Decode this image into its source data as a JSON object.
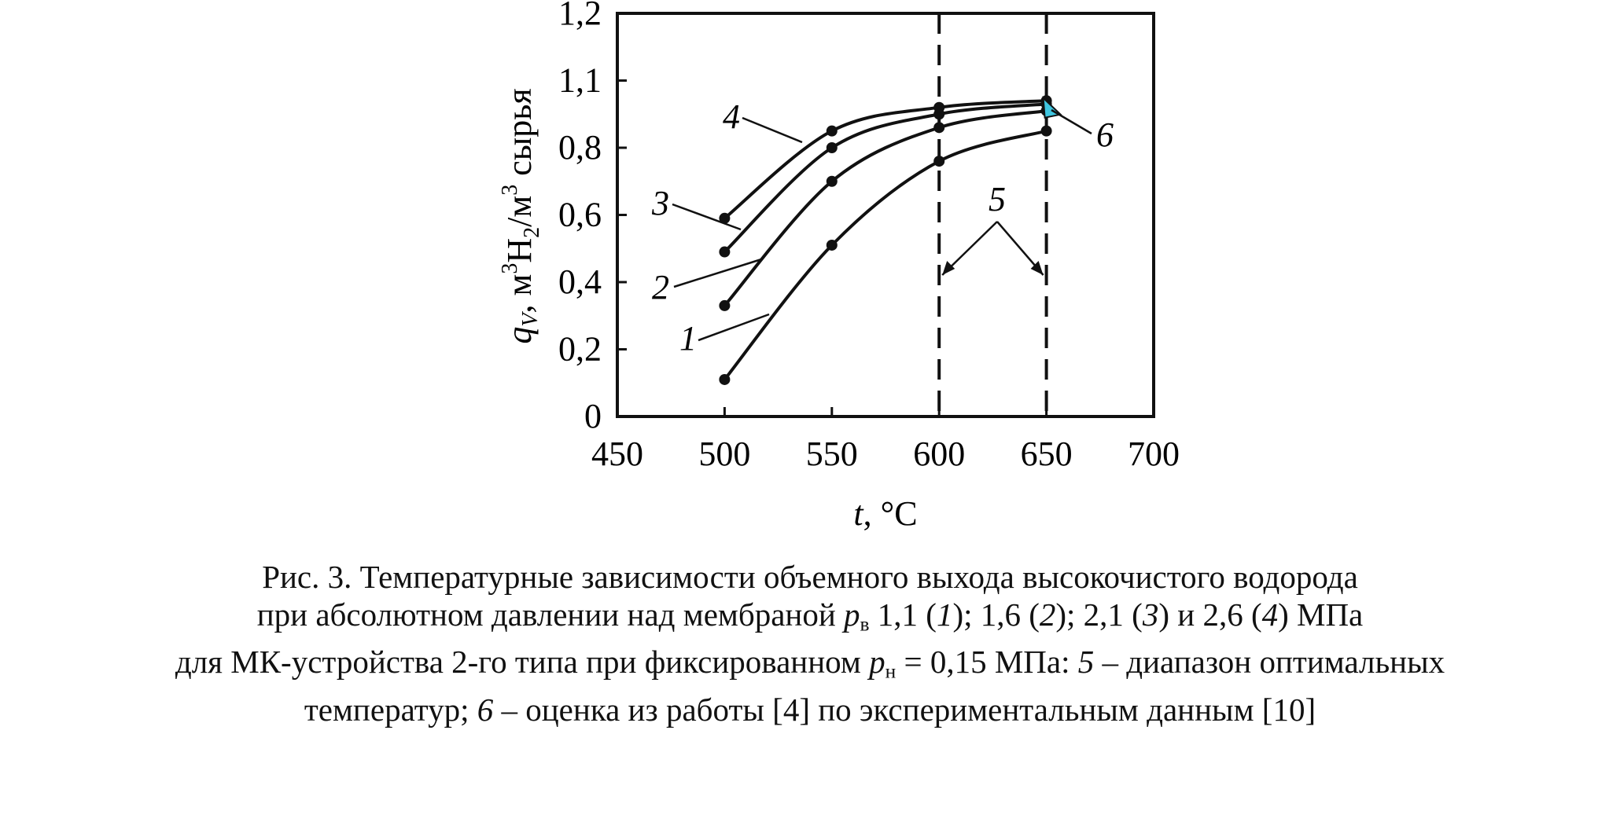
{
  "chart_data": {
    "type": "line",
    "xlabel_var": "t",
    "xlabel_unit": ", °C",
    "ylabel_var": "q",
    "ylabel_sub": "V",
    "ylabel_a": ", м",
    "ylabel_b": "Н",
    "ylabel_c": "/м",
    "ylabel_d": " сырья",
    "ylabel_sup1": "3",
    "ylabel_sub2": "2",
    "ylabel_sup3": "3",
    "xlim": [
      450,
      700
    ],
    "ylim": [
      0,
      1.2
    ],
    "x_ticks": [
      "450",
      "500",
      "550",
      "600",
      "650",
      "700"
    ],
    "y_ticks": [
      "0",
      "0,2",
      "0,4",
      "0,6",
      "0,8",
      "1,1",
      "1,2"
    ],
    "series": [
      {
        "name": "1",
        "x": [
          500,
          550,
          600,
          650
        ],
        "y": [
          0.11,
          0.51,
          0.76,
          0.85
        ]
      },
      {
        "name": "2",
        "x": [
          500,
          550,
          600,
          650
        ],
        "y": [
          0.33,
          0.7,
          0.86,
          0.91
        ]
      },
      {
        "name": "3",
        "x": [
          500,
          550,
          600,
          650
        ],
        "y": [
          0.49,
          0.8,
          0.9,
          0.93
        ]
      },
      {
        "name": "4",
        "x": [
          500,
          550,
          600,
          650
        ],
        "y": [
          0.59,
          0.85,
          0.92,
          0.94
        ]
      }
    ],
    "optimal_range": {
      "label": "5",
      "x": [
        600,
        650
      ]
    },
    "estimate": {
      "label": "6",
      "x": 650,
      "y": 0.92,
      "color": "#3fc6e0"
    },
    "line_color": "#111111"
  },
  "caption": {
    "line1": "Рис. 3. Температурные зависимости объемного выхода высокочистого водорода",
    "line2_a": "при абсолютном давлении над мембраной ",
    "line2_p": "p",
    "line2_psub": "в",
    "line2_b": " 1,1 (",
    "line2_n1": "1",
    "line2_c": "); 1,6 (",
    "line2_n2": "2",
    "line2_d": "); 2,1 (",
    "line2_n3": "3",
    "line2_e": ") и 2,6 (",
    "line2_n4": "4",
    "line2_f": ") МПа",
    "line3_a": "для МК-устройства 2-го типа при фиксированном ",
    "line3_p": "p",
    "line3_psub": "н",
    "line3_b": " = 0,15 МПа: ",
    "line3_n5": "5",
    "line3_c": " – диапазон оптимальных",
    "line4_a": "температур; ",
    "line4_n6": "6",
    "line4_b": " – оценка из работы [4] по экспериментальным данным [10]"
  }
}
